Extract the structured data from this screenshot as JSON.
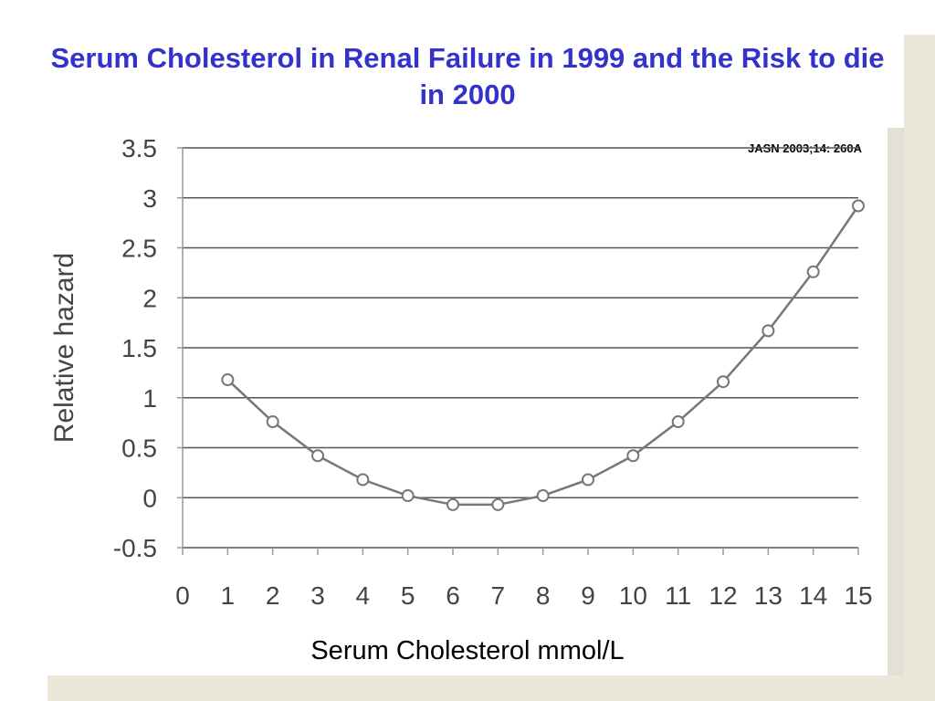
{
  "title": "Serum Cholesterol in Renal Failure in 1999 and the Risk to die in 2000",
  "citation": "JASN 2003;14: 260A",
  "chart_data": {
    "type": "line",
    "title": "Serum Cholesterol in Renal Failure in 1999 and the Risk to die in 2000",
    "xlabel": "Serum Cholesterol mmol/L",
    "ylabel": "Relative hazard",
    "xlim": [
      0,
      15
    ],
    "ylim": [
      -0.5,
      3.5
    ],
    "x_ticks": [
      "0",
      "1",
      "2",
      "3",
      "4",
      "5",
      "6",
      "7",
      "8",
      "9",
      "10",
      "11",
      "12",
      "13",
      "14",
      "15"
    ],
    "y_ticks": [
      "3.5",
      "3",
      "2.5",
      "2",
      "1.5",
      "1",
      "0.5",
      "0",
      "-0.5"
    ],
    "grid": "horizontal",
    "legend": "none",
    "series": [
      {
        "x": [
          1,
          2,
          3,
          4,
          5,
          6,
          7,
          8,
          9,
          10,
          11,
          12,
          13,
          14,
          15
        ],
        "y": [
          1.18,
          0.76,
          0.42,
          0.18,
          0.02,
          -0.07,
          -0.07,
          0.02,
          0.18,
          0.42,
          0.76,
          1.16,
          1.67,
          2.26,
          2.92
        ]
      }
    ],
    "colors": {
      "line": "#777777",
      "marker": "#777777",
      "grid": "#555555",
      "title": "#3333cc"
    }
  }
}
